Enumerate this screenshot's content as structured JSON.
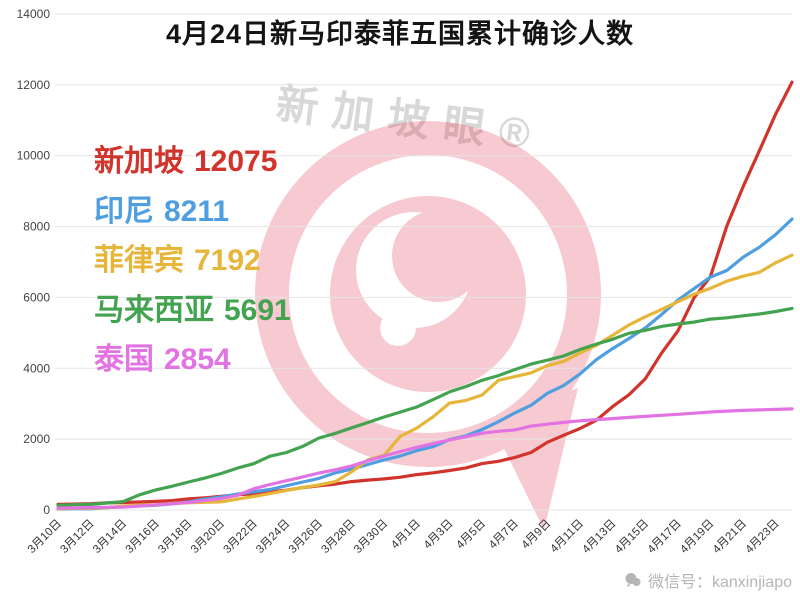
{
  "title": "4月24日新马印泰菲五国累计确诊人数",
  "watermark": {
    "brand": "新加坡眼®",
    "wechat_label": "微信号：kanxinjiapo",
    "logo_color": "#e2243f"
  },
  "chart_data": {
    "type": "line",
    "title": "4月24日新马印泰菲五国累计确诊人数",
    "xlabel": "",
    "ylabel": "",
    "ylim": [
      0,
      14000
    ],
    "y_ticks": [
      0,
      2000,
      4000,
      6000,
      8000,
      10000,
      12000,
      14000
    ],
    "grid": "horizontal",
    "legend_position": "upper-left-inside",
    "x_label_every": 2,
    "x_labels_shown": [
      "3月10日",
      "3月12日",
      "3月14日",
      "3月16日",
      "3月18日",
      "3月20日",
      "3月22日",
      "3月24日",
      "3月26日",
      "3月28日",
      "3月30日",
      "4月1日",
      "4月3日",
      "4月5日",
      "4月7日",
      "4月9日",
      "4月11日",
      "4月13日",
      "4月15日",
      "4月17日",
      "4月19日",
      "4月21日",
      "4月23日"
    ],
    "x_range_note": "daily points from 3月10日 to 4月24日",
    "series": [
      {
        "name": "新加坡",
        "final_value": 12075,
        "color": "#d0342c",
        "values": [
          160,
          166,
          178,
          200,
          212,
          226,
          243,
          266,
          313,
          345,
          385,
          432,
          455,
          509,
          558,
          631,
          683,
          732,
          802,
          844,
          879,
          926,
          1000,
          1049,
          1114,
          1189,
          1309,
          1375,
          1481,
          1623,
          1910,
          2108,
          2299,
          2532,
          2918,
          3252,
          3699,
          4427,
          5050,
          5992,
          6588,
          8014,
          9125,
          10141,
          11178,
          12075
        ]
      },
      {
        "name": "印尼",
        "final_value": 8211,
        "color": "#4f9fe0",
        "values": [
          27,
          34,
          34,
          69,
          96,
          117,
          134,
          172,
          227,
          309,
          369,
          450,
          514,
          579,
          686,
          790,
          893,
          1046,
          1155,
          1285,
          1414,
          1528,
          1677,
          1790,
          1986,
          2092,
          2273,
          2491,
          2738,
          2956,
          3293,
          3512,
          3842,
          4241,
          4557,
          4839,
          5136,
          5516,
          5923,
          6248,
          6575,
          6760,
          7135,
          7418,
          7775,
          8211
        ]
      },
      {
        "name": "菲律宾",
        "final_value": 7192,
        "color": "#e5b63a",
        "values": [
          33,
          49,
          52,
          64,
          111,
          140,
          142,
          187,
          202,
          217,
          230,
          307,
          380,
          462,
          552,
          636,
          707,
          803,
          1075,
          1418,
          1546,
          2084,
          2311,
          2633,
          3018,
          3094,
          3246,
          3660,
          3764,
          3870,
          4076,
          4195,
          4428,
          4648,
          4932,
          5223,
          5453,
          5660,
          5878,
          6087,
          6259,
          6459,
          6599,
          6710,
          6981,
          7192
        ]
      },
      {
        "name": "马来西亚",
        "final_value": 5691,
        "color": "#44a351",
        "values": [
          129,
          149,
          158,
          197,
          238,
          428,
          566,
          673,
          790,
          900,
          1030,
          1183,
          1306,
          1518,
          1624,
          1796,
          2031,
          2161,
          2320,
          2470,
          2626,
          2766,
          2908,
          3116,
          3333,
          3483,
          3662,
          3793,
          3963,
          4119,
          4228,
          4346,
          4530,
          4683,
          4817,
          4987,
          5072,
          5182,
          5251,
          5305,
          5389,
          5425,
          5482,
          5532,
          5603,
          5691
        ]
      },
      {
        "name": "泰国",
        "final_value": 2854,
        "color": "#e273e2",
        "values": [
          53,
          59,
          70,
          75,
          82,
          114,
          147,
          177,
          212,
          272,
          322,
          411,
          599,
          721,
          827,
          934,
          1045,
          1136,
          1245,
          1388,
          1524,
          1651,
          1771,
          1875,
          1978,
          2067,
          2169,
          2220,
          2258,
          2369,
          2423,
          2473,
          2518,
          2551,
          2579,
          2613,
          2643,
          2672,
          2700,
          2733,
          2765,
          2792,
          2811,
          2826,
          2839,
          2854
        ]
      }
    ]
  }
}
